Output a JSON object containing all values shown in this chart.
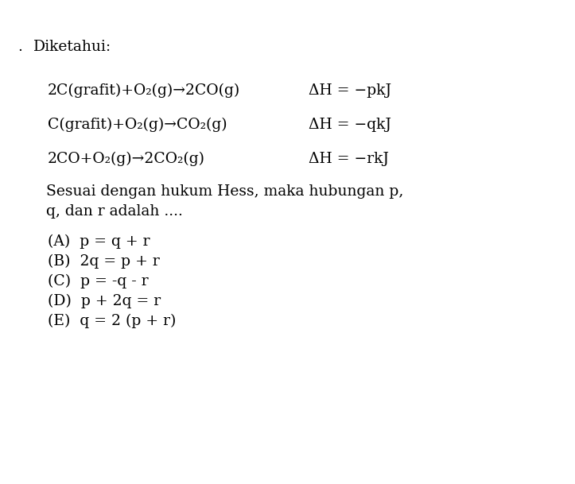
{
  "background_color": "#ffffff",
  "text_color": "#000000",
  "font_family": "DejaVu Serif",
  "font_size": 13.5,
  "fig_width": 7.23,
  "fig_height": 6.09,
  "dpi": 100,
  "dot": ".",
  "header": "Diketahui:",
  "sub2": "₂",
  "arrow": "→",
  "delta": "Δ",
  "minus": "−",
  "eq1": "2C(grafit)+O₂(g)→2CO(g)",
  "eq1_dH": "ΔH = −pkJ",
  "eq2": "C(grafit)+O₂(g)→CO₂(g)",
  "eq2_dH": "ΔH = −qkJ",
  "eq3": "2CO+O₂(g)→2CO₂(g)",
  "eq3_dH": "ΔH = −rkJ",
  "question1": "Sesuai dengan hukum Hess, maka hubungan p,",
  "question2": "q, dan r adalah ....",
  "optA": "(A)  p = q + r",
  "optB": "(B)  2q = p + r",
  "optC": "(C)  p = -q - r",
  "optD": "(D)  p + 2q = r",
  "optE": "(E)  q = 2 (p + r)"
}
